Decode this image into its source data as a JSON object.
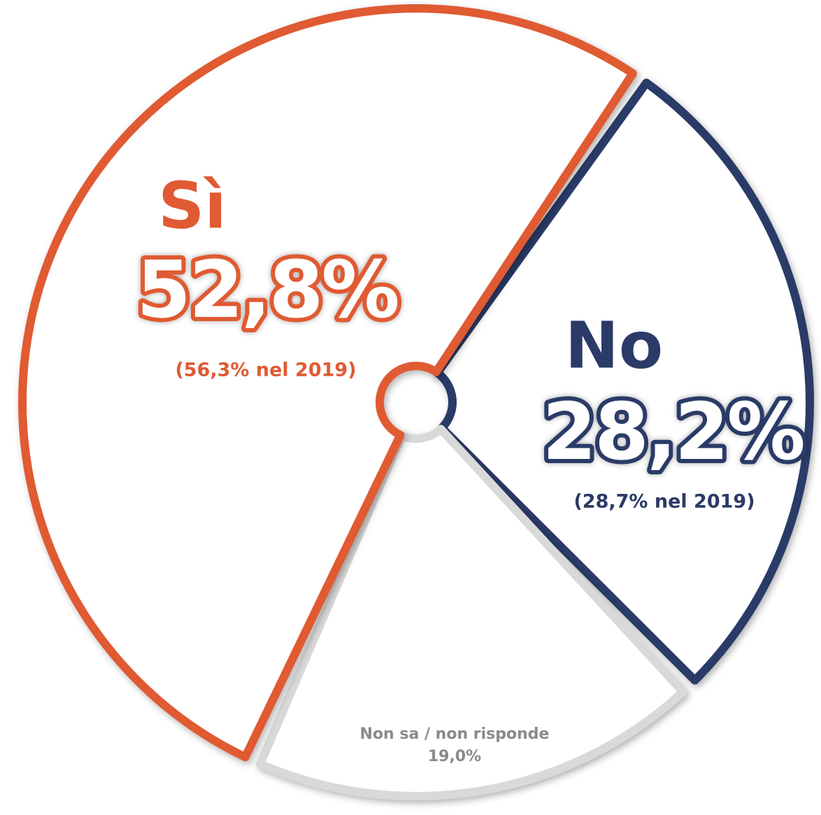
{
  "chart_data": {
    "type": "pie",
    "categories": [
      "No",
      "Non sa / non risponde",
      "Sì"
    ],
    "values": [
      28.2,
      19.0,
      52.8
    ],
    "value_labels": [
      "28,2%",
      "19,0%",
      "52,8%"
    ],
    "colors": [
      "#2b3a67",
      "#d9d9d9",
      "#e05a33"
    ],
    "annotations": [
      "(28,7% nel 2019)",
      null,
      "(56,3% nel 2019)"
    ]
  }
}
